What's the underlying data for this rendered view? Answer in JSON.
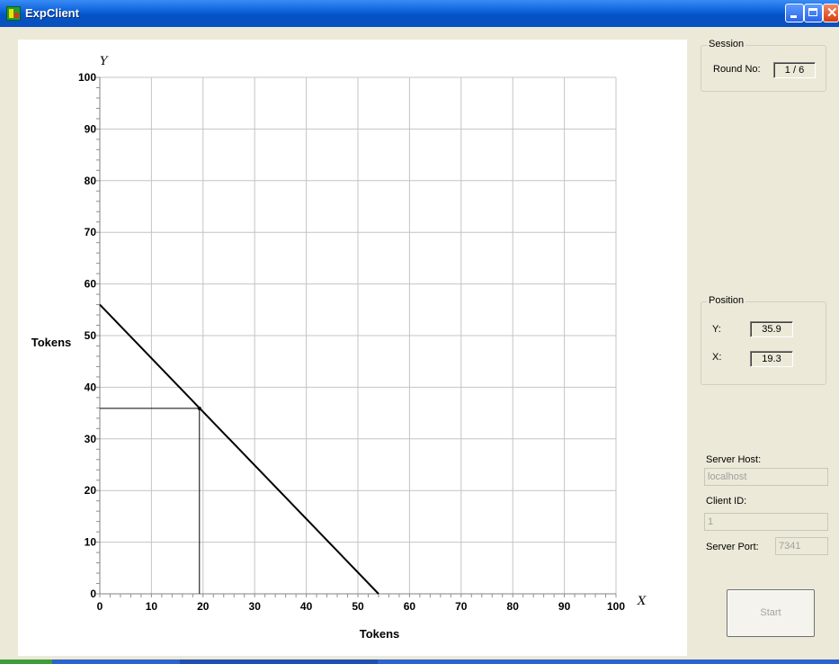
{
  "window": {
    "title": "ExpClient"
  },
  "session": {
    "group_label": "Session",
    "round_label": "Round No:",
    "round_value": "1 / 6"
  },
  "position": {
    "group_label": "Position",
    "y_label": "Y:",
    "y_value": "35.9",
    "x_label": "X:",
    "x_value": "19.3"
  },
  "connection": {
    "server_host_label": "Server Host:",
    "server_host_value": "localhost",
    "client_id_label": "Client ID:",
    "client_id_value": "1",
    "server_port_label": "Server Port:",
    "server_port_value": "7341"
  },
  "start_button": {
    "label": "Start"
  },
  "chart_data": {
    "type": "line",
    "xlabel": "Tokens",
    "ylabel": "Tokens",
    "x_axis_name": "X",
    "y_axis_name": "Y",
    "xlim": [
      0,
      100
    ],
    "ylim": [
      0,
      100
    ],
    "xticks": [
      "0",
      "10",
      "20",
      "30",
      "40",
      "50",
      "60",
      "70",
      "80",
      "90",
      "100"
    ],
    "yticks": [
      "0",
      "10",
      "20",
      "30",
      "40",
      "50",
      "60",
      "70",
      "80",
      "90",
      "100"
    ],
    "grid": true,
    "budget_line": {
      "x": [
        0,
        54
      ],
      "y": [
        56,
        0
      ]
    },
    "selected_point": {
      "x": 19.3,
      "y": 35.9
    }
  }
}
